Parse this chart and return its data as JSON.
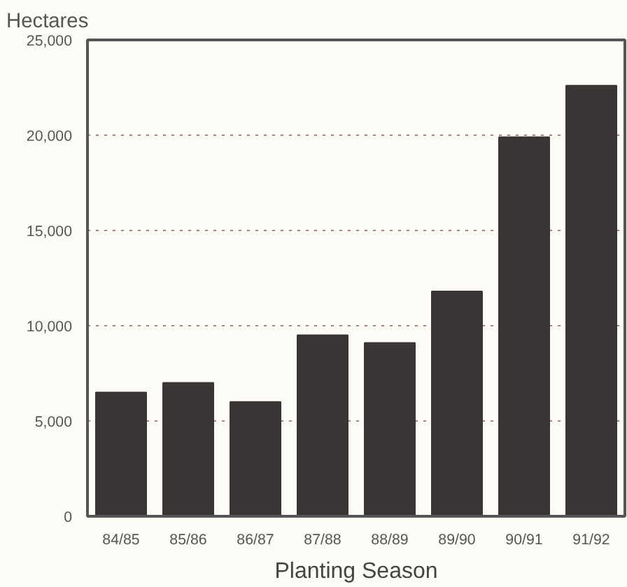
{
  "chart_data": {
    "type": "bar",
    "ylabel": "Hectares",
    "xlabel": "Planting Season",
    "categories": [
      "84/85",
      "85/86",
      "86/87",
      "87/88",
      "88/89",
      "89/90",
      "90/91",
      "91/92"
    ],
    "values": [
      6500,
      7000,
      6000,
      9500,
      9100,
      11800,
      19900,
      22600
    ],
    "color": "#3b3536",
    "ylim": [
      0,
      25000
    ],
    "yticks": [
      {
        "value": 0,
        "label": "0"
      },
      {
        "value": 5000,
        "label": "5,000"
      },
      {
        "value": 10000,
        "label": "10,000"
      },
      {
        "value": 15000,
        "label": "15,000"
      },
      {
        "value": 20000,
        "label": "20,000"
      },
      {
        "value": 25000,
        "label": "25,000"
      }
    ],
    "grid": "y"
  }
}
